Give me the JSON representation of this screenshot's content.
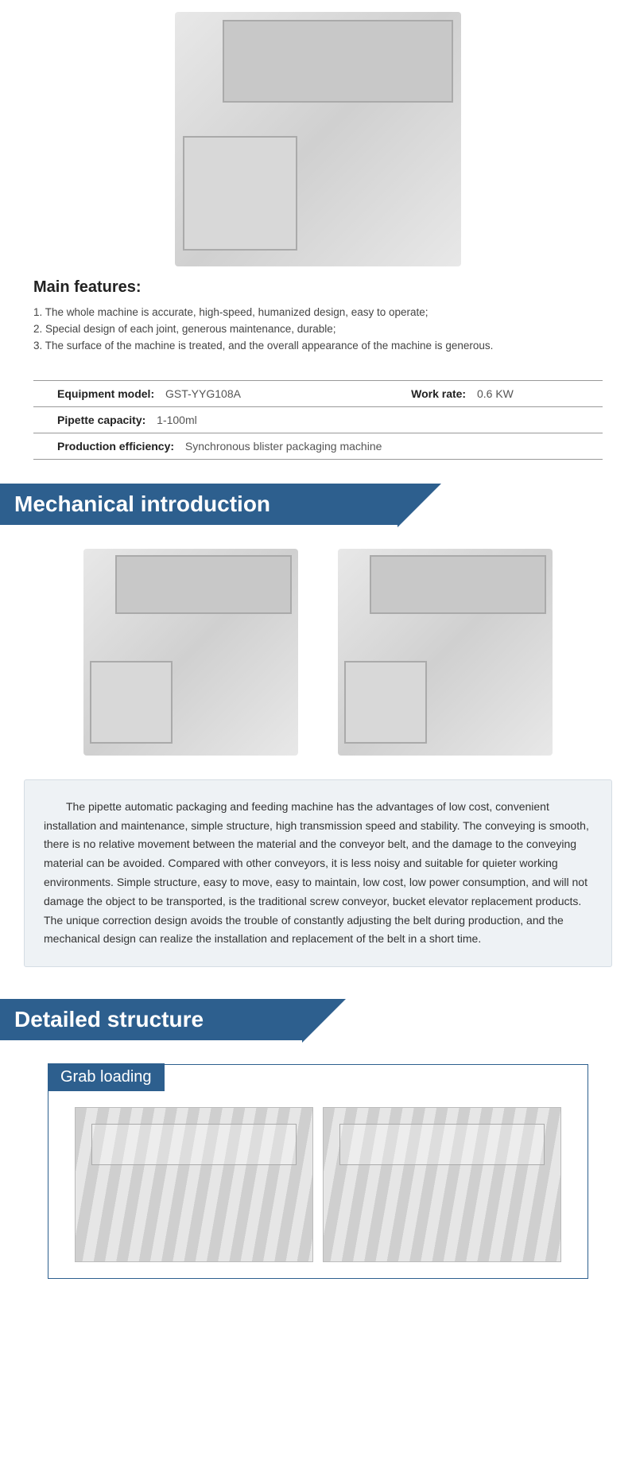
{
  "main_features": {
    "title": "Main features:",
    "items": [
      "1. The whole machine is accurate, high-speed, humanized design, easy to operate;",
      "2. Special design of each joint, generous maintenance, durable;",
      "3. The surface of the machine is treated, and the overall appearance of the machine is generous."
    ]
  },
  "specs": {
    "equipment_model_label": "Equipment model:",
    "equipment_model_value": "GST-YYG108A",
    "work_rate_label": "Work rate:",
    "work_rate_value": "0.6 KW",
    "pipette_capacity_label": "Pipette capacity:",
    "pipette_capacity_value": "1-100ml",
    "production_efficiency_label": "Production efficiency:",
    "production_efficiency_value": "Synchronous blister packaging machine"
  },
  "sections": {
    "mechanical_intro_title": "Mechanical introduction",
    "detailed_structure_title": "Detailed structure",
    "grab_loading_title": "Grab loading"
  },
  "intro_text": "The pipette automatic packaging and feeding machine has the advantages of low cost, convenient installation and maintenance, simple structure, high transmission speed and stability. The conveying is smooth, there is no relative movement between the material and the conveyor belt, and the damage to the conveying material can be avoided. Compared with other conveyors, it is less noisy and suitable for quieter working environments. Simple structure, easy to move, easy to maintain, low cost, low power consumption, and will not damage the object to be transported, is the traditional screw conveyor, bucket elevator replacement products. The unique correction design avoids the trouble of constantly adjusting the belt during production, and the mechanical design can realize the installation and replacement of the belt in a short time.",
  "colors": {
    "banner_bg": "#2d5f8e",
    "banner_text": "#ffffff",
    "body_text": "#333333",
    "intro_box_bg": "#eef2f5",
    "intro_box_border": "#d5dde4",
    "table_border": "#999999"
  },
  "typography": {
    "banner_fontsize": 28,
    "features_title_fontsize": 20,
    "body_fontsize": 14,
    "feature_line_fontsize": 13.5
  }
}
